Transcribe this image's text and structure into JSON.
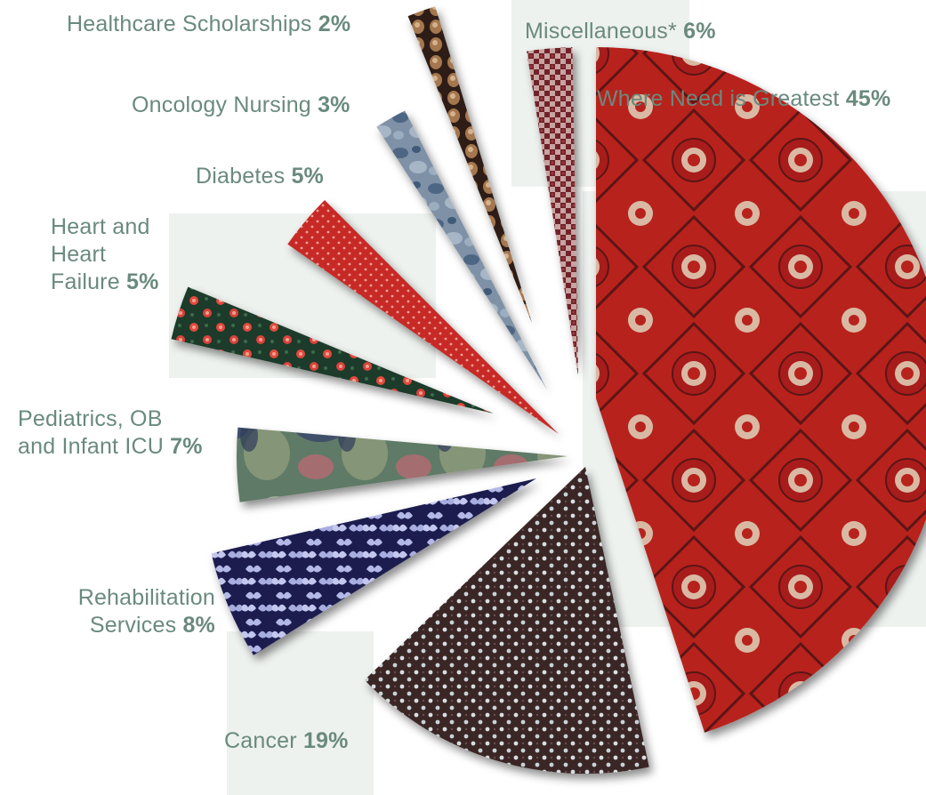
{
  "chart_data": {
    "type": "pie",
    "title": "",
    "slices": [
      {
        "label": "Where Need is Greatest",
        "value": 45,
        "value_label": "45%",
        "pattern": "red-medallion",
        "color": "#b8221f"
      },
      {
        "label": "Cancer",
        "value": 19,
        "value_label": "19%",
        "pattern": "brown-dots",
        "color": "#3a2626"
      },
      {
        "label": "Rehabilitation Services",
        "value": 8,
        "value_label": "8%",
        "pattern": "navy-butterflies",
        "color": "#1f1f4f"
      },
      {
        "label": "Pediatrics, OB and Infant ICU",
        "value": 7,
        "value_label": "7%",
        "pattern": "watercolor",
        "color": "#4f6656"
      },
      {
        "label": "Heart and Heart Failure",
        "value": 5,
        "value_label": "5%",
        "pattern": "floral-green",
        "color": "#1d3a2c"
      },
      {
        "label": "Diabetes",
        "value": 5,
        "value_label": "5%",
        "pattern": "red-pindots",
        "color": "#c72a25"
      },
      {
        "label": "Oncology Nursing",
        "value": 3,
        "value_label": "3%",
        "pattern": "blue-mottled",
        "color": "#667c93"
      },
      {
        "label": "Healthcare Scholarships",
        "value": 2,
        "value_label": "2%",
        "pattern": "bronze-tiles",
        "color": "#4e3420"
      },
      {
        "label": "Miscellaneous*",
        "value": 6,
        "value_label": "6%",
        "pattern": "checker-red",
        "color": "#7a2a2f"
      }
    ],
    "label_text_color": "#6a8a7e"
  },
  "labels": {
    "where_need_name": "Where Need is Greatest",
    "where_need_pct": "45%",
    "misc_name": "Miscellaneous*",
    "misc_pct": "6%",
    "scholarships_name": "Healthcare Scholarships",
    "scholarships_pct": "2%",
    "oncology_name": "Oncology Nursing",
    "oncology_pct": "3%",
    "diabetes_name": "Diabetes",
    "diabetes_pct": "5%",
    "heart_name": "Heart and\nHeart\nFailure",
    "heart_pct": "5%",
    "pediatrics_name": "Pediatrics, OB\nand Infant ICU",
    "pediatrics_pct": "7%",
    "rehab_name": "Rehabilitation\nServices",
    "rehab_pct": "8%",
    "cancer_name": "Cancer",
    "cancer_pct": "19%"
  }
}
